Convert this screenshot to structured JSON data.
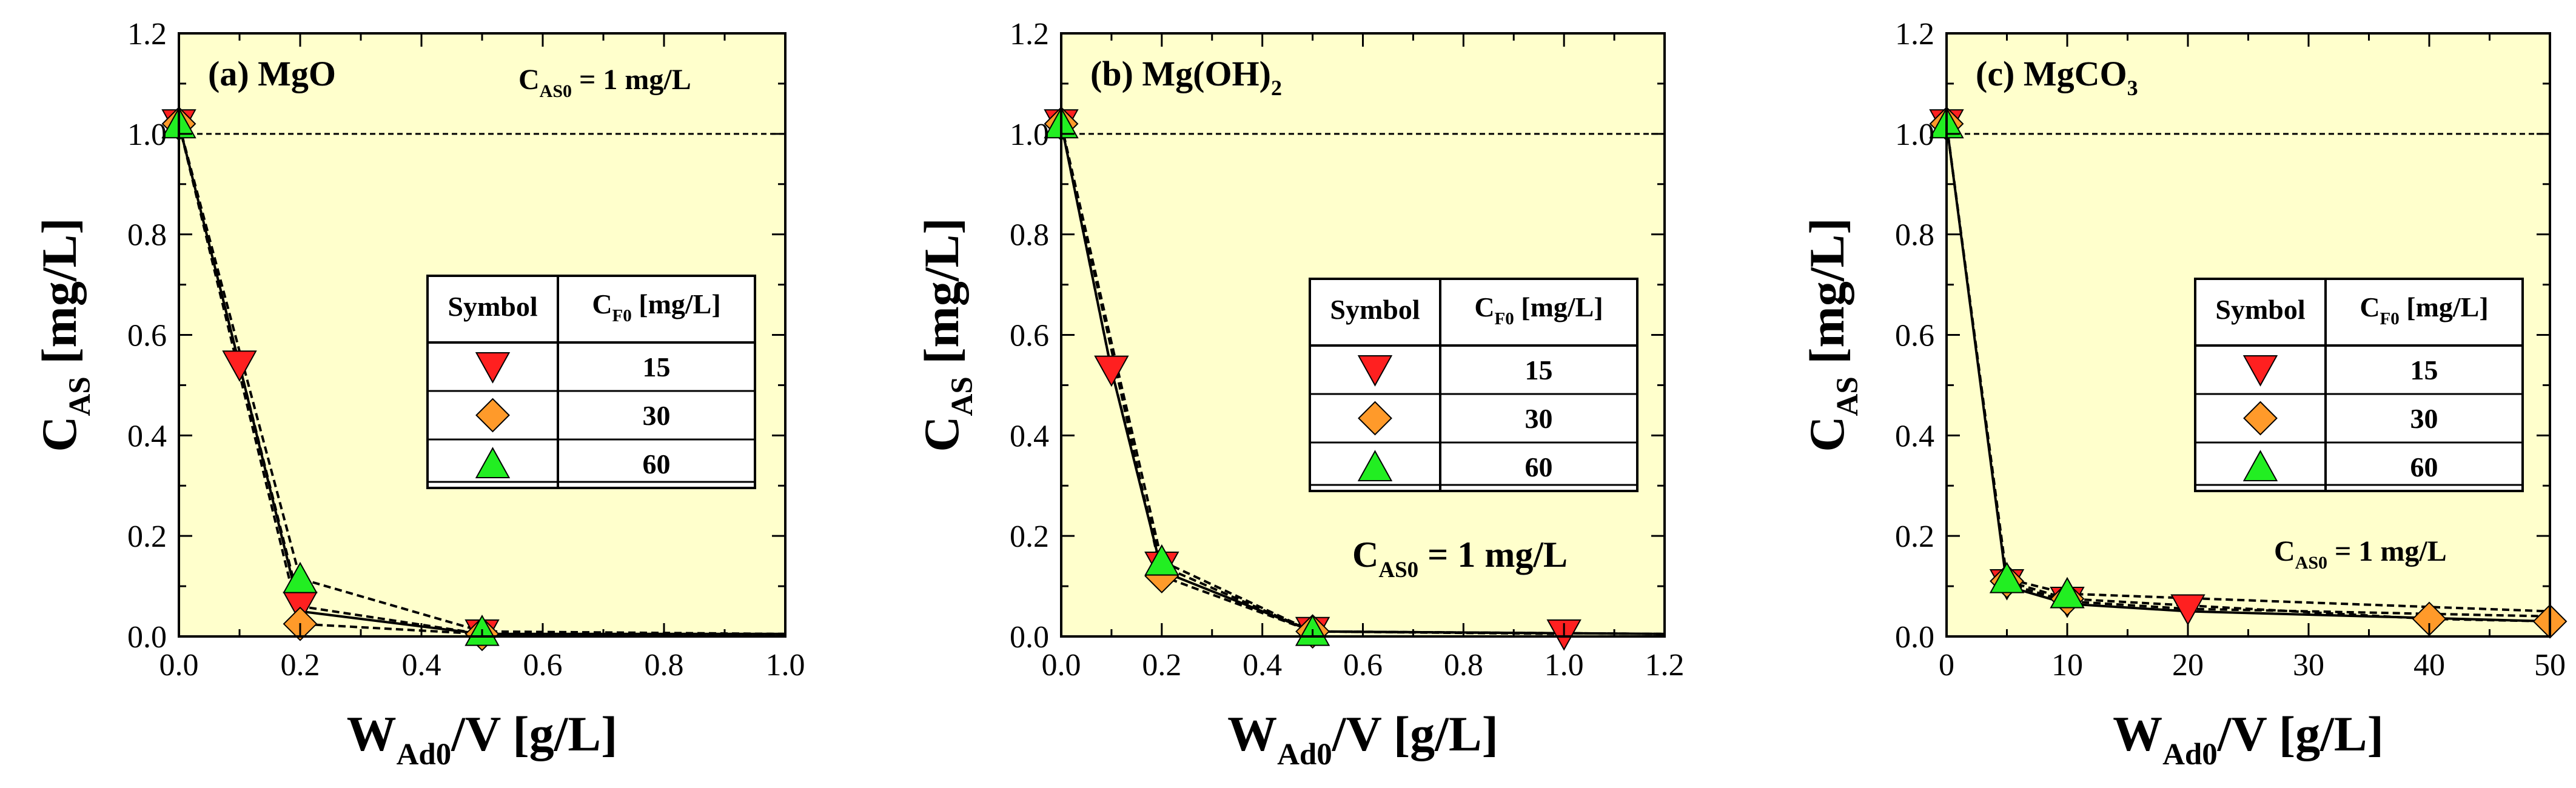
{
  "chart_data": [
    {
      "type": "line",
      "panel_label": "(a) MgO",
      "annotation": {
        "main": "C",
        "sub": "AS0",
        "rest": " = 1 mg/L"
      },
      "xlim": [
        0,
        1.0
      ],
      "ylim": [
        0,
        1.2
      ],
      "xticks": [
        "0.0",
        "0.2",
        "0.4",
        "0.6",
        "0.8",
        "1.0"
      ],
      "yticks": [
        "0.0",
        "0.2",
        "0.4",
        "0.6",
        "0.8",
        "1.0",
        "1.2"
      ],
      "xlabel": {
        "main": "W",
        "sub": "Ad0",
        "rest": "/V  [g/L]"
      },
      "ylabel": {
        "main": "C",
        "sub": "AS",
        "rest": "  [mg/L]"
      },
      "reference_line": 1.0,
      "series": [
        {
          "marker": "triangle-down",
          "color": "#ff2020",
          "x": [
            0,
            0.1,
            0.2,
            0.5,
            1.0
          ],
          "y": [
            1.02,
            0.54,
            0.06,
            0.005,
            0.005
          ]
        },
        {
          "marker": "diamond",
          "color": "#ff9a2a",
          "x": [
            0,
            0.2,
            0.5,
            1.0
          ],
          "y": [
            1.02,
            0.025,
            0.005,
            0.005
          ]
        },
        {
          "marker": "triangle-up",
          "color": "#22ee22",
          "x": [
            0,
            0.2,
            0.5,
            1.0
          ],
          "y": [
            1.02,
            0.115,
            0.01,
            0.005
          ]
        }
      ],
      "solid_line": {
        "x": [
          0,
          0.1,
          0.2,
          0.5,
          1.0
        ],
        "y": [
          1.02,
          0.54,
          0.05,
          0.005,
          0.005
        ]
      },
      "legend_table": {
        "header": [
          "Symbol",
          {
            "main": "C",
            "sub": "F0",
            "rest": " [mg/L]"
          }
        ],
        "rows": [
          "15",
          "30",
          "60"
        ]
      }
    },
    {
      "type": "line",
      "panel_label": {
        "main": "(b) Mg(OH)",
        "sub": "2"
      },
      "annotation": {
        "main": "C",
        "sub": "AS0",
        "rest": " = 1 mg/L"
      },
      "xlim": [
        0,
        1.2
      ],
      "ylim": [
        0,
        1.2
      ],
      "xticks": [
        "0.0",
        "0.2",
        "0.4",
        "0.6",
        "0.8",
        "1.0",
        "1.2"
      ],
      "yticks": [
        "0.0",
        "0.2",
        "0.4",
        "0.6",
        "0.8",
        "1.0",
        "1.2"
      ],
      "xlabel": {
        "main": "W",
        "sub": "Ad0",
        "rest": "/V  [g/L]"
      },
      "ylabel": {
        "main": "C",
        "sub": "AS",
        "rest": "  [mg/L]"
      },
      "reference_line": 1.0,
      "series": [
        {
          "marker": "triangle-down",
          "color": "#ff2020",
          "x": [
            0,
            0.1,
            0.2,
            0.5,
            1.0
          ],
          "y": [
            1.02,
            0.53,
            0.14,
            0.01,
            0.005
          ]
        },
        {
          "marker": "diamond",
          "color": "#ff9a2a",
          "x": [
            0,
            0.2,
            0.5,
            1.2
          ],
          "y": [
            1.02,
            0.12,
            0.01,
            0.005
          ]
        },
        {
          "marker": "triangle-up",
          "color": "#22ee22",
          "x": [
            0,
            0.2,
            0.5,
            1.2
          ],
          "y": [
            1.02,
            0.15,
            0.01,
            0.005
          ]
        }
      ],
      "solid_line": {
        "x": [
          0,
          0.1,
          0.2,
          0.5,
          1.2
        ],
        "y": [
          1.02,
          0.53,
          0.13,
          0.01,
          0.005
        ]
      },
      "legend_table": {
        "header": [
          "Symbol",
          {
            "main": "C",
            "sub": "F0",
            "rest": " [mg/L]"
          }
        ],
        "rows": [
          "15",
          "30",
          "60"
        ]
      }
    },
    {
      "type": "line",
      "panel_label": {
        "main": "(c) MgCO",
        "sub": "3"
      },
      "annotation": {
        "main": "C",
        "sub": "AS0",
        "rest": " = 1 mg/L"
      },
      "xlim": [
        0,
        50
      ],
      "ylim": [
        0,
        1.2
      ],
      "xticks": [
        "0",
        "10",
        "20",
        "30",
        "40",
        "50"
      ],
      "yticks": [
        "0.0",
        "0.2",
        "0.4",
        "0.6",
        "0.8",
        "1.0",
        "1.2"
      ],
      "xlabel": {
        "main": "W",
        "sub": "Ad0",
        "rest": "/V  [g/L]"
      },
      "ylabel": {
        "main": "C",
        "sub": "AS",
        "rest": "  [mg/L]"
      },
      "reference_line": 1.0,
      "series": [
        {
          "marker": "triangle-down",
          "color": "#ff2020",
          "x": [
            0,
            5,
            10,
            20,
            50
          ],
          "y": [
            1.02,
            0.105,
            0.07,
            0.055,
            0.04
          ]
        },
        {
          "marker": "diamond",
          "color": "#ff9a2a",
          "x": [
            0,
            5,
            10,
            40,
            50
          ],
          "y": [
            1.02,
            0.11,
            0.075,
            0.035,
            0.03
          ]
        },
        {
          "marker": "triangle-up",
          "color": "#22ee22",
          "x": [
            0,
            5,
            10,
            50
          ],
          "y": [
            1.02,
            0.115,
            0.085,
            0.05
          ]
        }
      ],
      "solid_line": {
        "x": [
          0,
          5,
          10,
          20,
          50
        ],
        "y": [
          1.02,
          0.1,
          0.065,
          0.05,
          0.03
        ]
      },
      "legend_table": {
        "header": [
          "Symbol",
          {
            "main": "C",
            "sub": "F0",
            "rest": " [mg/L]"
          }
        ],
        "rows": [
          "15",
          "30",
          "60"
        ]
      }
    }
  ],
  "colors": {
    "plot_background": "#ffffcc"
  }
}
